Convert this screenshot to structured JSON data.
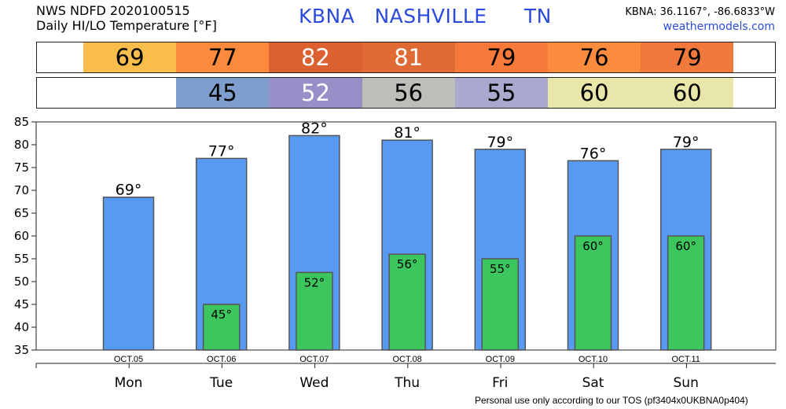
{
  "header": {
    "line1": "NWS NDFD 2020100515",
    "line2": "Daily HI/LO Temperature [°F]",
    "station": "KBNA",
    "city": "NASHVILLE",
    "state": "TN",
    "coords": "KBNA: 36.1167°, -86.6833°W",
    "site": "weathermodels.com"
  },
  "footer": "Personal use only according to our TOS (pf3404x0UKBNA0p404)",
  "hi_strip": [
    {
      "label": "69",
      "color": "#f8bd4a",
      "text_color": "#000000"
    },
    {
      "label": "77",
      "color": "#fc8a3c",
      "text_color": "#000000"
    },
    {
      "label": "82",
      "color": "#dd6031",
      "text_color": "#ffffff"
    },
    {
      "label": "81",
      "color": "#e06a34",
      "text_color": "#ffffff"
    },
    {
      "label": "79",
      "color": "#f7793a",
      "text_color": "#000000"
    },
    {
      "label": "76",
      "color": "#fb8c3d",
      "text_color": "#000000"
    },
    {
      "label": "79",
      "color": "#f0783b",
      "text_color": "#000000"
    }
  ],
  "lo_strip": [
    {
      "label": "",
      "color": "#ffffff",
      "text_color": "#000000"
    },
    {
      "label": "45",
      "color": "#7f9ece",
      "text_color": "#000000"
    },
    {
      "label": "52",
      "color": "#9790c8",
      "text_color": "#ffffff"
    },
    {
      "label": "56",
      "color": "#bdbdb9",
      "text_color": "#000000"
    },
    {
      "label": "55",
      "color": "#a9a8cf",
      "text_color": "#000000"
    },
    {
      "label": "60",
      "color": "#e8e6a8",
      "text_color": "#000000"
    },
    {
      "label": "60",
      "color": "#e8e6a8",
      "text_color": "#000000"
    }
  ],
  "chart_data": {
    "type": "bar",
    "categories": [
      "Mon",
      "Tue",
      "Wed",
      "Thu",
      "Fri",
      "Sat",
      "Sun"
    ],
    "dates": [
      "OCT.05",
      "OCT.06",
      "OCT.07",
      "OCT.08",
      "OCT.09",
      "OCT.10",
      "OCT.11"
    ],
    "series": [
      {
        "values": [
          68.5,
          77,
          82,
          81,
          79,
          76.5,
          79
        ],
        "labels": [
          "69°",
          "77°",
          "82°",
          "81°",
          "79°",
          "76°",
          "79°"
        ],
        "color": "#5899f2"
      },
      {
        "values": [
          null,
          45,
          52,
          56,
          55,
          60,
          60
        ],
        "labels": [
          "",
          "45°",
          "52°",
          "56°",
          "55°",
          "60°",
          "60°"
        ],
        "color": "#3cc65e"
      }
    ],
    "ylim": [
      35,
      85
    ],
    "yticks": [
      35,
      40,
      45,
      50,
      55,
      60,
      65,
      70,
      75,
      80,
      85
    ],
    "grid": false,
    "legend": "none"
  }
}
